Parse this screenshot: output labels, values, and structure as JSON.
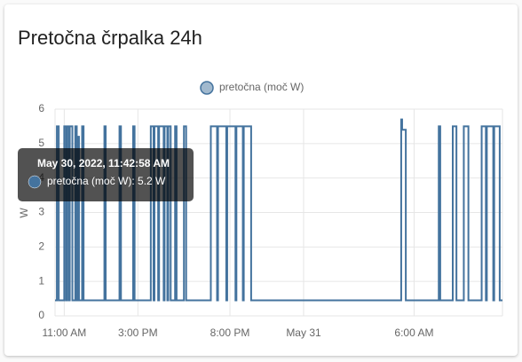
{
  "card": {
    "title": "Pretočna črpalka 24h"
  },
  "chart_data": {
    "type": "line",
    "y_label": "W",
    "series": [
      {
        "name": "pretočna (moč W)",
        "color": "#44739e",
        "x": [
          10.5,
          10.6,
          10.6,
          10.7,
          10.7,
          11.0,
          11.0,
          11.1,
          11.1,
          11.15,
          11.15,
          11.25,
          11.25,
          11.3,
          11.3,
          11.44,
          11.44,
          11.6,
          11.6,
          11.68,
          11.68,
          11.71,
          11.71,
          11.8,
          11.8,
          11.97,
          11.97,
          12.05,
          12.05,
          13.18,
          13.18,
          13.25,
          13.25,
          14.0,
          14.0,
          14.08,
          14.08,
          14.74,
          14.74,
          14.82,
          14.82,
          15.7,
          15.7,
          15.85,
          15.85,
          15.9,
          15.9,
          16.1,
          16.1,
          16.15,
          16.15,
          16.4,
          16.4,
          16.45,
          16.45,
          16.6,
          16.6,
          16.65,
          16.65,
          16.78,
          16.78,
          17.02,
          17.02,
          17.1,
          17.1,
          17.5,
          17.5,
          17.62,
          17.62,
          18.96,
          18.96,
          19.3,
          19.3,
          19.35,
          19.35,
          19.8,
          19.8,
          19.85,
          19.85,
          20.3,
          20.3,
          20.35,
          20.35,
          20.7,
          20.7,
          20.75,
          20.75,
          21.15,
          21.15,
          29.3,
          29.3,
          29.35,
          29.35,
          29.55,
          29.55,
          31.34,
          31.34,
          31.42,
          31.42,
          32.1,
          32.1,
          32.3,
          32.3,
          32.7,
          32.7,
          32.95,
          32.95,
          33.67,
          33.67,
          33.9,
          33.9,
          33.95,
          33.95,
          34.3,
          34.3,
          34.35,
          34.35,
          34.65,
          34.65,
          34.8
        ],
        "values": [
          0.45,
          0.45,
          5.5,
          5.5,
          0.45,
          0.45,
          5.5,
          5.5,
          0.45,
          0.45,
          5.5,
          5.5,
          0.45,
          0.45,
          5.5,
          5.5,
          0.45,
          0.45,
          5.5,
          5.5,
          0.45,
          0.45,
          5.2,
          5.2,
          0.45,
          0.45,
          5.5,
          5.5,
          0.45,
          0.45,
          5.5,
          5.5,
          0.45,
          0.45,
          5.5,
          5.5,
          0.45,
          0.45,
          5.5,
          5.5,
          0.45,
          0.45,
          5.5,
          5.5,
          0.45,
          0.45,
          5.5,
          5.5,
          0.45,
          0.45,
          5.5,
          5.5,
          0.45,
          0.45,
          5.5,
          5.5,
          0.45,
          0.45,
          5.5,
          5.5,
          0.45,
          0.45,
          5.5,
          5.5,
          0.45,
          0.45,
          5.5,
          5.5,
          0.45,
          0.45,
          5.5,
          5.5,
          0.45,
          0.45,
          5.5,
          5.5,
          0.45,
          0.45,
          5.5,
          5.5,
          0.45,
          0.45,
          5.5,
          5.5,
          0.45,
          0.45,
          5.5,
          5.5,
          0.45,
          0.45,
          5.7,
          5.7,
          5.4,
          5.4,
          0.45,
          0.45,
          5.5,
          5.5,
          0.45,
          0.45,
          5.5,
          5.5,
          0.45,
          0.45,
          5.5,
          5.5,
          0.45,
          0.45,
          5.5,
          5.5,
          0.45,
          0.45,
          5.5,
          5.5,
          0.45,
          0.45,
          5.5,
          5.5,
          0.45,
          0.45
        ]
      }
    ],
    "xlim": [
      10.5,
      34.8
    ],
    "xticks": [
      {
        "value": 11,
        "label": "11:00 AM"
      },
      {
        "value": 15,
        "label": "3:00 PM"
      },
      {
        "value": 20,
        "label": "8:00 PM"
      },
      {
        "value": 24,
        "label": "May 31"
      },
      {
        "value": 30,
        "label": "6:00 AM"
      }
    ],
    "ylim": [
      0,
      6
    ],
    "yticks": [
      0,
      1,
      2,
      3,
      4,
      5,
      6
    ],
    "grid": true,
    "legend": "top",
    "tooltip": {
      "title": "May 30, 2022, 11:42:58 AM",
      "label": "pretočna (moč W): 5.2 W"
    }
  }
}
